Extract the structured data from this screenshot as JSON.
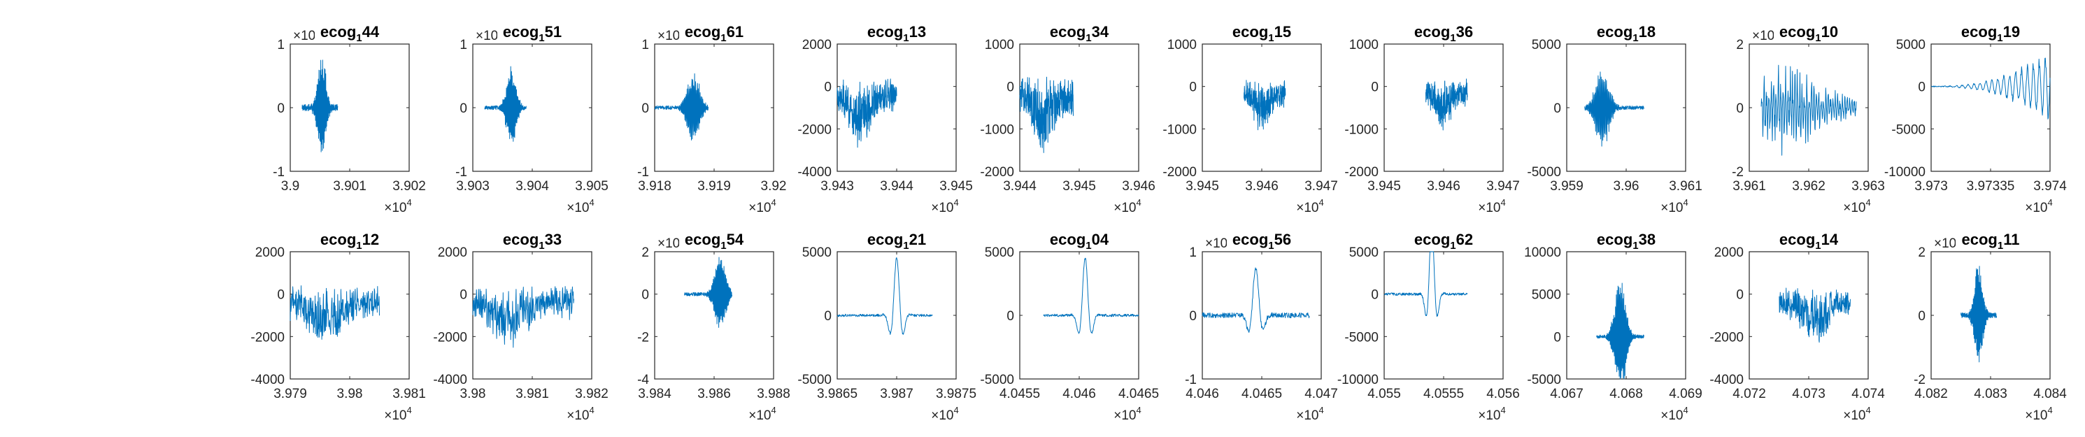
{
  "figure": {
    "series_color": "#0072BD",
    "axis_color": "#262626",
    "background": "#ffffff"
  },
  "chart_data": [
    {
      "type": "line",
      "title": "ecog",
      "title_sub": "1",
      "title_num": "44",
      "xticks": [
        "3.9",
        "3.901",
        "3.902"
      ],
      "xlim": [
        39000,
        39020
      ],
      "x_exponent": "4",
      "yticks": [
        "-1",
        "0",
        "1"
      ],
      "ylim": [
        -1,
        1
      ],
      "y_exponent": "×10",
      "signal": {
        "start": 39002,
        "end": 39008,
        "peak": 39005.3,
        "amp": 0.85,
        "noise": 0.05,
        "char": "burst"
      }
    },
    {
      "type": "line",
      "title": "ecog",
      "title_sub": "1",
      "title_num": "51",
      "xticks": [
        "3.903",
        "3.904",
        "3.905"
      ],
      "xlim": [
        39030,
        39050
      ],
      "x_exponent": "4",
      "yticks": [
        "-1",
        "0",
        "1"
      ],
      "ylim": [
        -1,
        1
      ],
      "y_exponent": "×10",
      "signal": {
        "start": 39032,
        "end": 39039,
        "peak": 39036.5,
        "amp": 0.65,
        "noise": 0.03,
        "char": "burst"
      }
    },
    {
      "type": "line",
      "title": "ecog",
      "title_sub": "1",
      "title_num": "61",
      "xticks": [
        "3.918",
        "3.919",
        "3.92"
      ],
      "xlim": [
        39180,
        39200
      ],
      "x_exponent": "4",
      "yticks": [
        "-1",
        "0",
        "1"
      ],
      "ylim": [
        -1,
        1
      ],
      "y_exponent": "×10",
      "signal": {
        "start": 39180,
        "end": 39189,
        "peak": 39186.5,
        "amp": 0.6,
        "noise": 0.03,
        "char": "burst"
      }
    },
    {
      "type": "line",
      "title": "ecog",
      "title_sub": "1",
      "title_num": "13",
      "xticks": [
        "3.943",
        "3.944",
        "3.945"
      ],
      "xlim": [
        39430,
        39450
      ],
      "x_exponent": "4",
      "yticks": [
        "-4000",
        "-2000",
        "0",
        "2000"
      ],
      "ylim": [
        -4000,
        2000
      ],
      "signal": {
        "start": 39430,
        "end": 39440,
        "peak": 39434,
        "amp": 3000,
        "noise": 400,
        "char": "dense"
      }
    },
    {
      "type": "line",
      "title": "ecog",
      "title_sub": "1",
      "title_num": "34",
      "xticks": [
        "3.944",
        "3.945",
        "3.946"
      ],
      "xlim": [
        39440,
        39460
      ],
      "x_exponent": "4",
      "yticks": [
        "-2000",
        "-1000",
        "0",
        "1000"
      ],
      "ylim": [
        -2000,
        1000
      ],
      "signal": {
        "start": 39440,
        "end": 39449,
        "peak": 39444,
        "amp": 1600,
        "noise": 300,
        "char": "dense"
      }
    },
    {
      "type": "line",
      "title": "ecog",
      "title_sub": "1",
      "title_num": "15",
      "xticks": [
        "3.945",
        "3.946",
        "3.947"
      ],
      "xlim": [
        39450,
        39470
      ],
      "x_exponent": "4",
      "yticks": [
        "-2000",
        "-1000",
        "0",
        "1000"
      ],
      "ylim": [
        -2000,
        1000
      ],
      "signal": {
        "start": 39457,
        "end": 39464,
        "peak": 39460,
        "amp": 1100,
        "noise": 180,
        "char": "dense"
      }
    },
    {
      "type": "line",
      "title": "ecog",
      "title_sub": "1",
      "title_num": "36",
      "xticks": [
        "3.945",
        "3.946",
        "3.947"
      ],
      "xlim": [
        39450,
        39470
      ],
      "x_exponent": "4",
      "yticks": [
        "-2000",
        "-1000",
        "0",
        "1000"
      ],
      "ylim": [
        -2000,
        1000
      ],
      "signal": {
        "start": 39457,
        "end": 39464,
        "peak": 39460,
        "amp": 1000,
        "noise": 200,
        "char": "dense"
      }
    },
    {
      "type": "line",
      "title": "ecog",
      "title_sub": "1",
      "title_num": "18",
      "xticks": [
        "3.959",
        "3.96",
        "3.961"
      ],
      "xlim": [
        39590,
        39610
      ],
      "x_exponent": "4",
      "yticks": [
        "-5000",
        "0",
        "5000"
      ],
      "ylim": [
        -5000,
        5000
      ],
      "signal": {
        "start": 39593,
        "end": 39603,
        "peak": 39596,
        "amp": 3400,
        "noise": 150,
        "char": "burst"
      }
    },
    {
      "type": "line",
      "title": "ecog",
      "title_sub": "1",
      "title_num": "10",
      "xticks": [
        "3.961",
        "3.962",
        "3.963"
      ],
      "xlim": [
        39610,
        39630
      ],
      "x_exponent": "4",
      "yticks": [
        "-2",
        "0",
        "2"
      ],
      "ylim": [
        -2,
        2
      ],
      "y_exponent": "×10",
      "signal": {
        "start": 39612,
        "end": 39628,
        "peak": 39616,
        "amp": 1.6,
        "noise": 0.05,
        "char": "oscill"
      }
    },
    {
      "type": "line",
      "title": "ecog",
      "title_sub": "1",
      "title_num": "19",
      "xticks": [
        "3.973",
        "3.97335",
        "3.974"
      ],
      "xlim": [
        39730,
        39740
      ],
      "x_exponent": "4",
      "yticks": [
        "-10000",
        "-5000",
        "0",
        "5000"
      ],
      "ylim": [
        -10000,
        5000
      ],
      "signal": {
        "start": 39730,
        "end": 39740,
        "peak": 39737,
        "amp": 3800,
        "noise": 60,
        "char": "growing"
      }
    },
    {
      "type": "line",
      "title": "ecog",
      "title_sub": "1",
      "title_num": "12",
      "xticks": [
        "3.979",
        "3.98",
        "3.981"
      ],
      "xlim": [
        39790,
        39810
      ],
      "x_exponent": "4",
      "yticks": [
        "-4000",
        "-2000",
        "0",
        "2000"
      ],
      "ylim": [
        -4000,
        2000
      ],
      "signal": {
        "start": 39790,
        "end": 39805,
        "peak": 39796,
        "amp": 2400,
        "noise": 500,
        "char": "dense"
      }
    },
    {
      "type": "line",
      "title": "ecog",
      "title_sub": "1",
      "title_num": "33",
      "xticks": [
        "3.98",
        "3.981",
        "3.982"
      ],
      "xlim": [
        39800,
        39820
      ],
      "x_exponent": "4",
      "yticks": [
        "-4000",
        "-2000",
        "0",
        "2000"
      ],
      "ylim": [
        -4000,
        2000
      ],
      "signal": {
        "start": 39800,
        "end": 39817,
        "peak": 39806,
        "amp": 2400,
        "noise": 500,
        "char": "dense"
      }
    },
    {
      "type": "line",
      "title": "ecog",
      "title_sub": "1",
      "title_num": "54",
      "xticks": [
        "3.984",
        "3.986",
        "3.988"
      ],
      "xlim": [
        39840,
        39880
      ],
      "x_exponent": "4",
      "yticks": [
        "-4",
        "-2",
        "0",
        "2"
      ],
      "ylim": [
        -4,
        2
      ],
      "y_exponent": "×10",
      "signal": {
        "start": 39850,
        "end": 39866,
        "peak": 39862,
        "amp": 1.9,
        "noise": 0.08,
        "char": "burst"
      }
    },
    {
      "type": "line",
      "title": "ecog",
      "title_sub": "1",
      "title_num": "21",
      "xticks": [
        "3.9865",
        "3.987",
        "3.9875"
      ],
      "xlim": [
        39865,
        39875
      ],
      "x_exponent": "4",
      "yticks": [
        "-5000",
        "0",
        "5000"
      ],
      "ylim": [
        -5000,
        5000
      ],
      "signal": {
        "start": 39865,
        "end": 39873,
        "peak": 39870,
        "amp": 4500,
        "noise": 100,
        "char": "spike"
      }
    },
    {
      "type": "line",
      "title": "ecog",
      "title_sub": "1",
      "title_num": "04",
      "xticks": [
        "4.0455",
        "4.046",
        "4.0465"
      ],
      "xlim": [
        40455,
        40465
      ],
      "x_exponent": "4",
      "yticks": [
        "-5000",
        "0",
        "5000"
      ],
      "ylim": [
        -5000,
        5000
      ],
      "signal": {
        "start": 40457,
        "end": 40465,
        "peak": 40460.5,
        "amp": 4500,
        "noise": 100,
        "char": "spike"
      }
    },
    {
      "type": "line",
      "title": "ecog",
      "title_sub": "1",
      "title_num": "56",
      "xticks": [
        "4.046",
        "4.0465",
        "4.047"
      ],
      "xlim": [
        40460,
        40470
      ],
      "x_exponent": "4",
      "yticks": [
        "-1",
        "0",
        "1"
      ],
      "ylim": [
        -1,
        1
      ],
      "y_exponent": "×10",
      "signal": {
        "start": 40460,
        "end": 40469,
        "peak": 40464.5,
        "amp": 0.75,
        "noise": 0.04,
        "char": "spike"
      }
    },
    {
      "type": "line",
      "title": "ecog",
      "title_sub": "1",
      "title_num": "62",
      "xticks": [
        "4.055",
        "4.0555",
        "4.056"
      ],
      "xlim": [
        40550,
        40560
      ],
      "x_exponent": "4",
      "yticks": [
        "-10000",
        "-5000",
        "0",
        "5000"
      ],
      "ylim": [
        -10000,
        5000
      ],
      "signal": {
        "start": 40550,
        "end": 40557,
        "peak": 40554,
        "amp": 8000,
        "noise": 150,
        "char": "spike"
      }
    },
    {
      "type": "line",
      "title": "ecog",
      "title_sub": "1",
      "title_num": "38",
      "xticks": [
        "4.067",
        "4.068",
        "4.069"
      ],
      "xlim": [
        40670,
        40690
      ],
      "x_exponent": "4",
      "yticks": [
        "-5000",
        "0",
        "5000",
        "10000"
      ],
      "ylim": [
        -5000,
        10000
      ],
      "signal": {
        "start": 40675,
        "end": 40683,
        "peak": 40679,
        "amp": 7000,
        "noise": 200,
        "char": "burst"
      }
    },
    {
      "type": "line",
      "title": "ecog",
      "title_sub": "1",
      "title_num": "14",
      "xticks": [
        "4.072",
        "4.073",
        "4.074"
      ],
      "xlim": [
        40720,
        40740
      ],
      "x_exponent": "4",
      "yticks": [
        "-4000",
        "-2000",
        "0",
        "2000"
      ],
      "ylim": [
        -4000,
        2000
      ],
      "signal": {
        "start": 40725,
        "end": 40737,
        "peak": 40731,
        "amp": 2400,
        "noise": 400,
        "char": "dense"
      }
    },
    {
      "type": "line",
      "title": "ecog",
      "title_sub": "1",
      "title_num": "11",
      "xticks": [
        "4.082",
        "4.083",
        "4.084"
      ],
      "xlim": [
        40820,
        40840
      ],
      "x_exponent": "4",
      "yticks": [
        "-2",
        "0",
        "2"
      ],
      "ylim": [
        -2,
        2
      ],
      "y_exponent": "×10",
      "signal": {
        "start": 40825,
        "end": 40831,
        "peak": 40828,
        "amp": 1.7,
        "noise": 0.08,
        "char": "burst"
      }
    }
  ]
}
